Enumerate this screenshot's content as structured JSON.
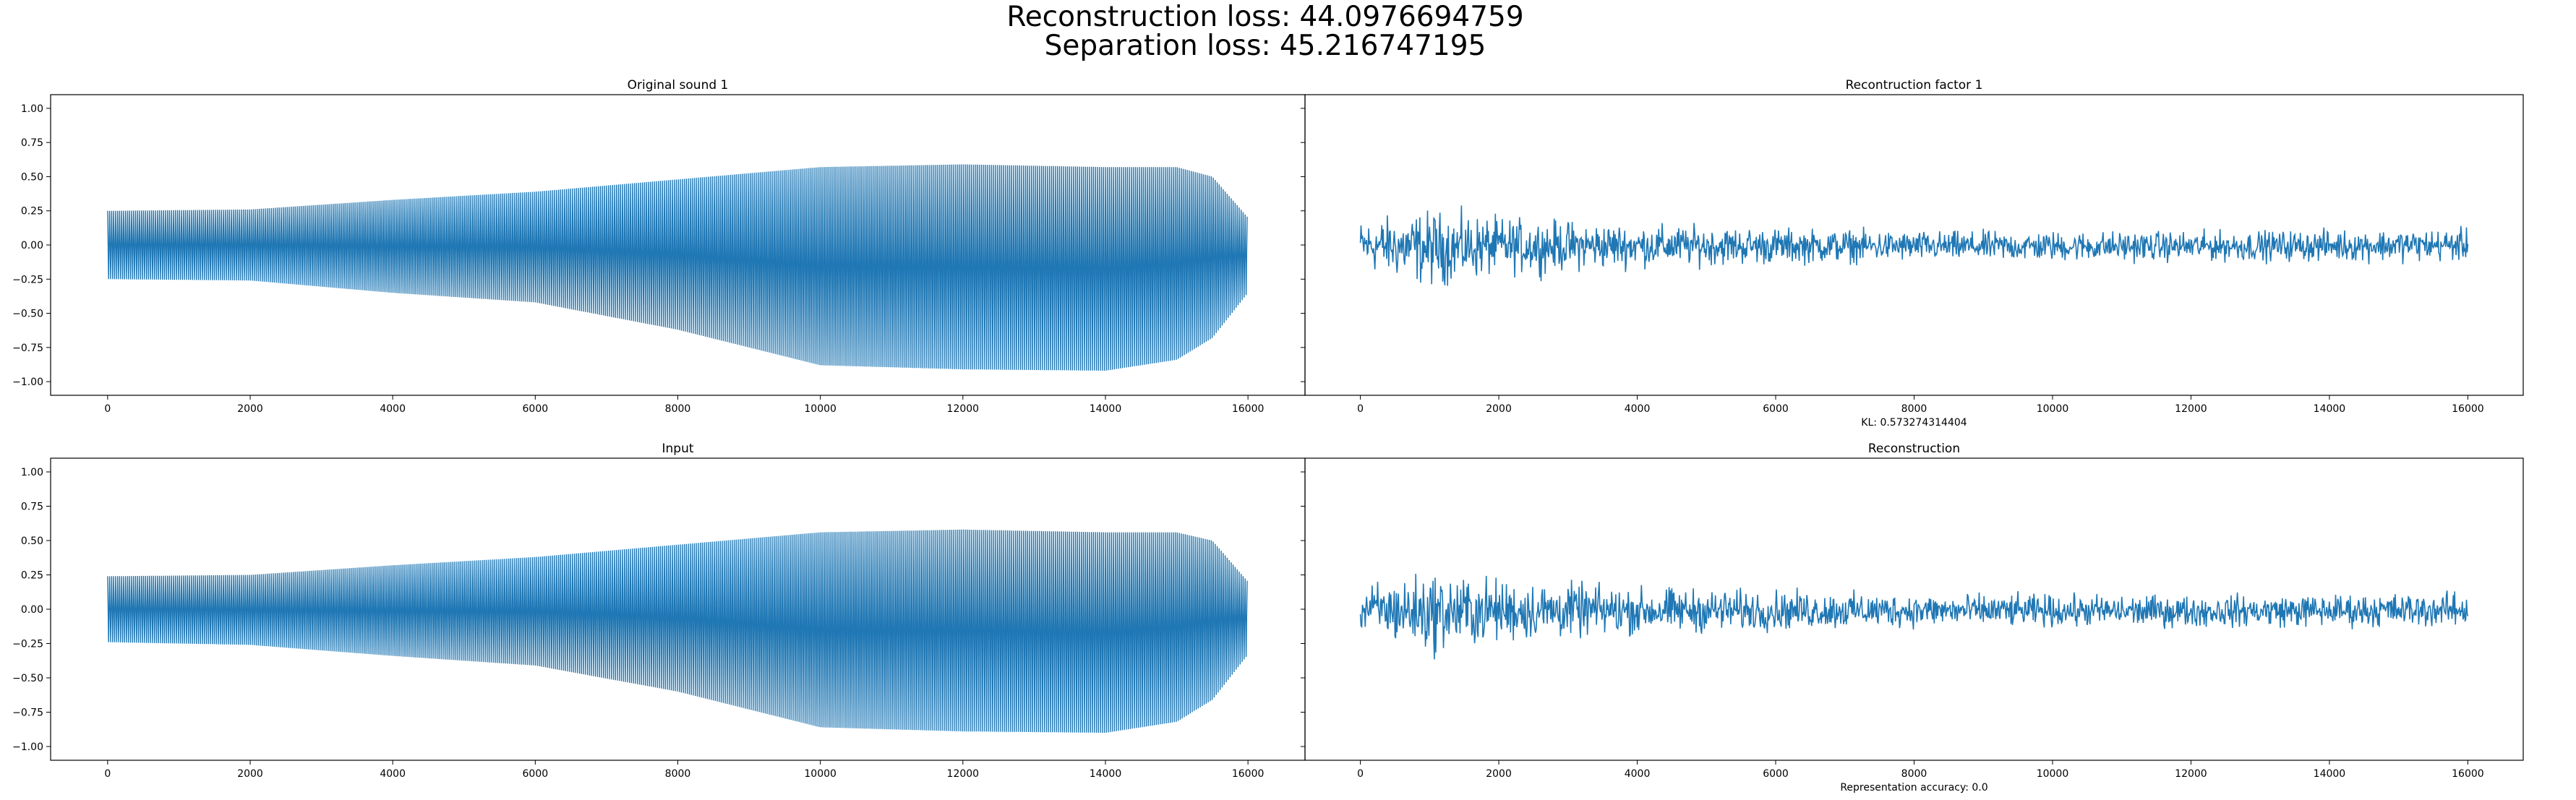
{
  "figure": {
    "suptitle_line1": "Reconstruction loss: 44.0976694759",
    "suptitle_line2": "Separation loss: 45.216747195"
  },
  "colors": {
    "line": "#1f77b4",
    "axes": "#000000",
    "background": "#ffffff"
  },
  "chart_data": [
    {
      "type": "line",
      "title": "Original sound 1",
      "xlabel": "",
      "ylabel": "",
      "xlim": [
        -800,
        16800
      ],
      "ylim": [
        -1.1,
        1.1
      ],
      "xticks": [
        0,
        2000,
        4000,
        6000,
        8000,
        10000,
        12000,
        14000,
        16000
      ],
      "yticks": [
        -1.0,
        -0.75,
        -0.5,
        -0.25,
        0.0,
        0.25,
        0.5,
        0.75,
        1.0
      ],
      "ytick_labels": [
        "−1.00",
        "−0.75",
        "−0.50",
        "−0.25",
        "0.00",
        "0.25",
        "0.50",
        "0.75",
        "1.00"
      ],
      "grid": false,
      "signal": "dense waveform, 16000 samples",
      "envelope": {
        "x": [
          0,
          2000,
          4000,
          6000,
          8000,
          10000,
          12000,
          14000,
          15000,
          15500,
          16000
        ],
        "upper": [
          0.25,
          0.26,
          0.33,
          0.39,
          0.48,
          0.57,
          0.59,
          0.57,
          0.57,
          0.5,
          0.2
        ],
        "lower": [
          -0.25,
          -0.26,
          -0.35,
          -0.42,
          -0.62,
          -0.88,
          -0.91,
          -0.92,
          -0.84,
          -0.68,
          -0.35
        ]
      },
      "series": [
        {
          "values_summary": "amplitude-modulated tone"
        }
      ]
    },
    {
      "type": "line",
      "title": "Recontruction factor 1",
      "xlabel": "KL: 0.573274314404",
      "ylabel": "",
      "xlim": [
        -800,
        16800
      ],
      "ylim": [
        -1.1,
        1.1
      ],
      "xticks": [
        0,
        2000,
        4000,
        6000,
        8000,
        10000,
        12000,
        14000,
        16000
      ],
      "grid": false,
      "signal": "noise, 16000 samples",
      "envelope": {
        "x": [
          0,
          1000,
          2000,
          4000,
          8000,
          12000,
          16000
        ],
        "upper": [
          0.18,
          0.25,
          0.2,
          0.15,
          0.1,
          0.1,
          0.12
        ],
        "lower": [
          -0.18,
          -0.3,
          -0.22,
          -0.16,
          -0.12,
          -0.12,
          -0.12
        ]
      }
    },
    {
      "type": "line",
      "title": "Input",
      "xlabel": "",
      "ylabel": "",
      "xlim": [
        -800,
        16800
      ],
      "ylim": [
        -1.1,
        1.1
      ],
      "xticks": [
        0,
        2000,
        4000,
        6000,
        8000,
        10000,
        12000,
        14000,
        16000
      ],
      "yticks": [
        -1.0,
        -0.75,
        -0.5,
        -0.25,
        0.0,
        0.25,
        0.5,
        0.75,
        1.0
      ],
      "ytick_labels": [
        "−1.00",
        "−0.75",
        "−0.50",
        "−0.25",
        "0.00",
        "0.25",
        "0.50",
        "0.75",
        "1.00"
      ],
      "grid": false,
      "signal": "dense waveform, 16000 samples",
      "envelope": {
        "x": [
          0,
          2000,
          4000,
          6000,
          8000,
          10000,
          12000,
          14000,
          15000,
          15500,
          16000
        ],
        "upper": [
          0.24,
          0.25,
          0.32,
          0.38,
          0.47,
          0.56,
          0.58,
          0.56,
          0.56,
          0.5,
          0.2
        ],
        "lower": [
          -0.24,
          -0.26,
          -0.34,
          -0.41,
          -0.6,
          -0.86,
          -0.89,
          -0.9,
          -0.82,
          -0.66,
          -0.33
        ]
      }
    },
    {
      "type": "line",
      "title": "Reconstruction",
      "xlabel": "Representation accuracy: 0.0",
      "ylabel": "",
      "xlim": [
        -800,
        16800
      ],
      "ylim": [
        -1.1,
        1.1
      ],
      "xticks": [
        0,
        2000,
        4000,
        6000,
        8000,
        10000,
        12000,
        14000,
        16000
      ],
      "grid": false,
      "signal": "noise, 16000 samples",
      "envelope": {
        "x": [
          0,
          1000,
          2000,
          4000,
          8000,
          12000,
          16000
        ],
        "upper": [
          0.18,
          0.27,
          0.22,
          0.16,
          0.11,
          0.1,
          0.12
        ],
        "lower": [
          -0.18,
          -0.32,
          -0.24,
          -0.18,
          -0.13,
          -0.13,
          -0.13
        ]
      }
    }
  ]
}
